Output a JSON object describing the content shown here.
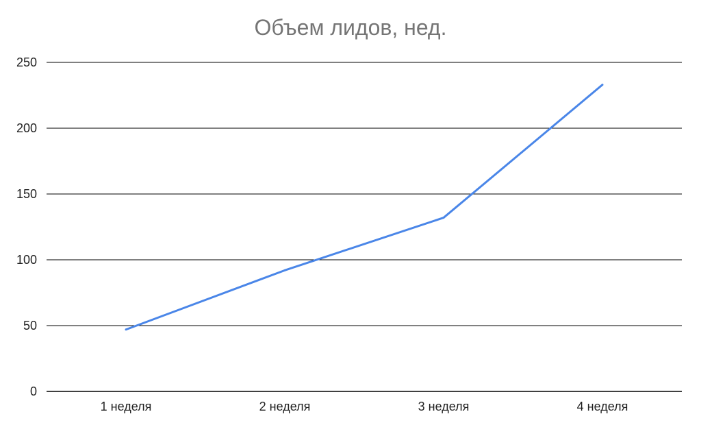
{
  "chart_data": {
    "type": "line",
    "title": "Объем лидов, нед.",
    "xlabel": "",
    "ylabel": "",
    "categories": [
      "1 неделя",
      "2 неделя",
      "3 неделя",
      "4 неделя"
    ],
    "series": [
      {
        "values": [
          47,
          92,
          132,
          233
        ]
      }
    ],
    "ylim": [
      0,
      250
    ],
    "yticks": [
      "0",
      "50",
      "100",
      "150",
      "200",
      "250"
    ],
    "grid": true,
    "legend": "none",
    "colors": {
      "line": "#4a86e8",
      "grid": "#000000",
      "title": "#757575"
    }
  }
}
